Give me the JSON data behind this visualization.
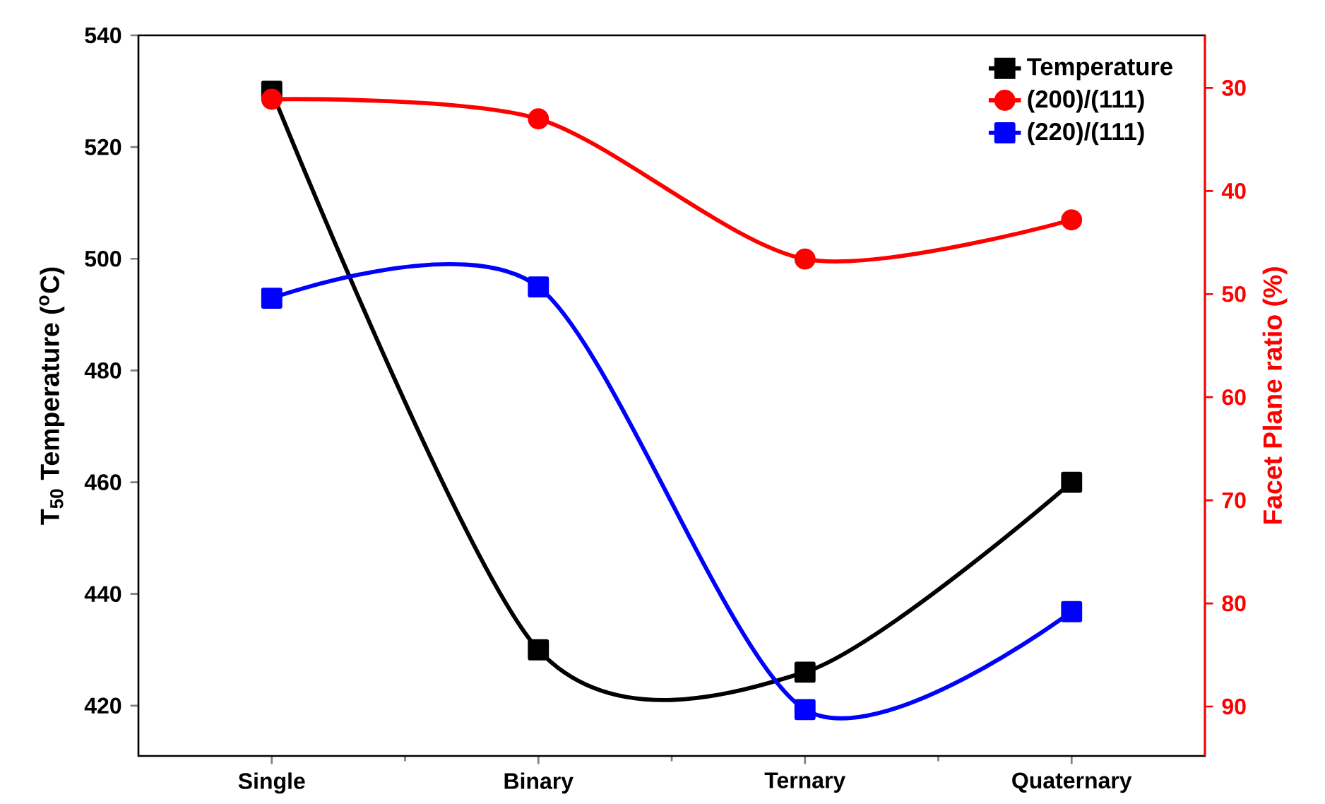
{
  "chart_data": {
    "type": "line",
    "categories": [
      "Single",
      "Binary",
      "Ternary",
      "Quaternary"
    ],
    "ylabel": "T$_{50}$ Temperature ($^{o}$C)",
    "y2label": "Facet Plane ratio (%)",
    "ylim": [
      411,
      540
    ],
    "yticks": [
      420,
      440,
      460,
      480,
      500,
      520,
      540
    ],
    "y2lim": [
      94.8,
      24.9
    ],
    "y2ticks": [
      30,
      40,
      50,
      60,
      70,
      80,
      90
    ],
    "legend": "top right",
    "series": [
      {
        "name": "Temperature",
        "color": "#000000",
        "marker": "square",
        "values": [
          530,
          430,
          426,
          460
        ]
      },
      {
        "name": "(200)/(111)",
        "color": "#ff0000",
        "marker": "circle",
        "axis": "y2",
        "values": [
          31.1,
          33.0,
          46.6,
          42.8
        ]
      },
      {
        "name": "(220)/(111)",
        "color": "#0000ff",
        "marker": "square",
        "axis": "y2",
        "values": [
          50.4,
          49.3,
          90.3,
          80.8
        ]
      }
    ]
  }
}
